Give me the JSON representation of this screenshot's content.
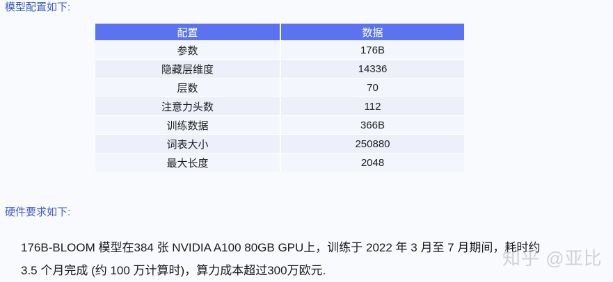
{
  "sections": {
    "model_heading": "模型配置如下:",
    "hardware_heading": "硬件要求如下:"
  },
  "config_table": {
    "headers": [
      "配置",
      "数据"
    ],
    "rows": [
      {
        "key": "参数",
        "value": "176B"
      },
      {
        "key": "隐藏层维度",
        "value": "14336"
      },
      {
        "key": "层数",
        "value": "70"
      },
      {
        "key": "注意力头数",
        "value": "112"
      },
      {
        "key": "训练数据",
        "value": "366B"
      },
      {
        "key": "词表大小",
        "value": "250880"
      },
      {
        "key": "最大长度",
        "value": "2048"
      }
    ]
  },
  "hardware": {
    "line1": "176B-BLOOM 模型在384 张 NVIDIA A100 80GB GPU上，训练于 2022 年 3 月至 7 月期间，耗时约",
    "line2": "3.5 个月完成 (约 100 万计算时)，算力成本超过300万欧元."
  },
  "watermark": "知乎 @亚比",
  "colors": {
    "header_bg": "#5b73f0",
    "heading_text": "#3f5ec9",
    "page_bg": "#f8fafe",
    "row_odd": "#f4f6fd",
    "row_even": "#edf0fb"
  }
}
